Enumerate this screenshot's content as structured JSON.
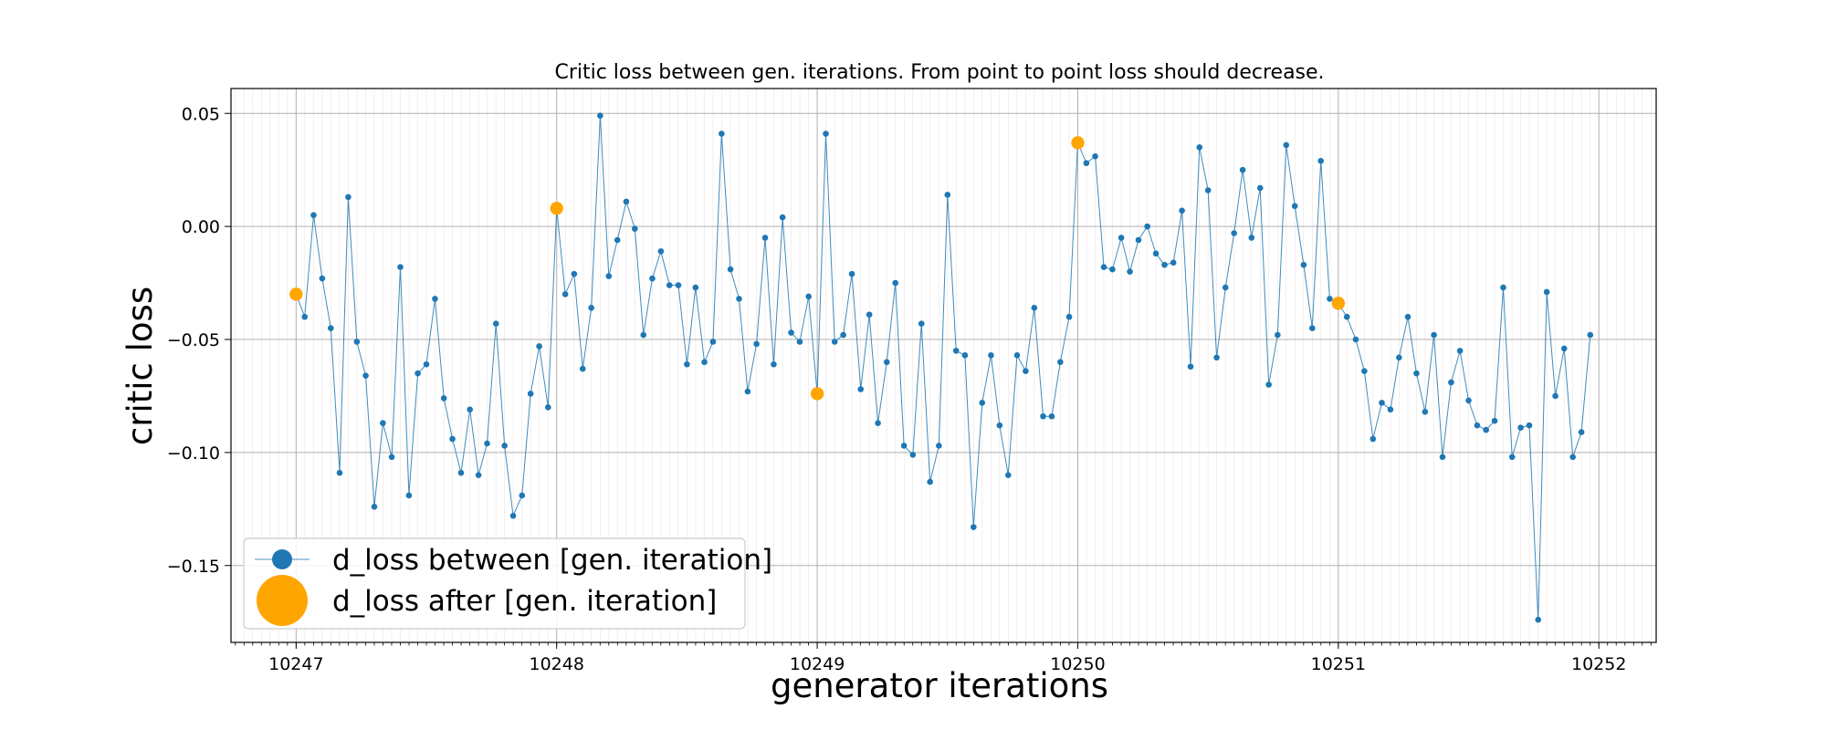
{
  "chart_data": {
    "type": "line",
    "title": "Critic loss between gen. iterations. From point to point loss should decrease.",
    "xlabel": "generator iterations",
    "ylabel": "critic loss",
    "xlim": [
      10246.75,
      10252.22
    ],
    "ylim": [
      -0.184,
      0.061
    ],
    "grid": true,
    "legend_position": "lower-left",
    "x_ticks": [
      10247,
      10248,
      10249,
      10250,
      10251,
      10252
    ],
    "x_tick_labels": [
      "10247",
      "10248",
      "10249",
      "10250",
      "10251",
      "10252"
    ],
    "y_ticks": [
      0.05,
      0.0,
      -0.05,
      -0.1,
      -0.15
    ],
    "y_tick_labels": [
      "0.05",
      "0.00",
      "−0.05",
      "−0.10",
      "−0.15"
    ],
    "series": [
      {
        "name": "d_loss between [gen. iteration]",
        "color": "#1f77b4",
        "marker": "dot",
        "points": [
          [
            10247.0,
            -0.03
          ],
          [
            10247.033,
            -0.04
          ],
          [
            10247.067,
            0.005
          ],
          [
            10247.1,
            -0.023
          ],
          [
            10247.133,
            -0.045
          ],
          [
            10247.167,
            -0.109
          ],
          [
            10247.2,
            0.013
          ],
          [
            10247.233,
            -0.051
          ],
          [
            10247.267,
            -0.066
          ],
          [
            10247.3,
            -0.124
          ],
          [
            10247.333,
            -0.087
          ],
          [
            10247.367,
            -0.102
          ],
          [
            10247.4,
            -0.018
          ],
          [
            10247.433,
            -0.119
          ],
          [
            10247.467,
            -0.065
          ],
          [
            10247.5,
            -0.061
          ],
          [
            10247.533,
            -0.032
          ],
          [
            10247.567,
            -0.076
          ],
          [
            10247.6,
            -0.094
          ],
          [
            10247.633,
            -0.109
          ],
          [
            10247.667,
            -0.081
          ],
          [
            10247.7,
            -0.11
          ],
          [
            10247.733,
            -0.096
          ],
          [
            10247.767,
            -0.043
          ],
          [
            10247.8,
            -0.097
          ],
          [
            10247.833,
            -0.128
          ],
          [
            10247.867,
            -0.119
          ],
          [
            10247.9,
            -0.074
          ],
          [
            10247.933,
            -0.053
          ],
          [
            10247.967,
            -0.08
          ],
          [
            10248.0,
            0.008
          ],
          [
            10248.033,
            -0.03
          ],
          [
            10248.067,
            -0.021
          ],
          [
            10248.1,
            -0.063
          ],
          [
            10248.133,
            -0.036
          ],
          [
            10248.167,
            0.049
          ],
          [
            10248.2,
            -0.022
          ],
          [
            10248.233,
            -0.006
          ],
          [
            10248.267,
            0.011
          ],
          [
            10248.3,
            -0.001
          ],
          [
            10248.333,
            -0.048
          ],
          [
            10248.367,
            -0.023
          ],
          [
            10248.4,
            -0.011
          ],
          [
            10248.433,
            -0.026
          ],
          [
            10248.467,
            -0.026
          ],
          [
            10248.5,
            -0.061
          ],
          [
            10248.533,
            -0.027
          ],
          [
            10248.567,
            -0.06
          ],
          [
            10248.6,
            -0.051
          ],
          [
            10248.633,
            0.041
          ],
          [
            10248.667,
            -0.019
          ],
          [
            10248.7,
            -0.032
          ],
          [
            10248.733,
            -0.073
          ],
          [
            10248.767,
            -0.052
          ],
          [
            10248.8,
            -0.005
          ],
          [
            10248.833,
            -0.061
          ],
          [
            10248.867,
            0.004
          ],
          [
            10248.9,
            -0.047
          ],
          [
            10248.933,
            -0.051
          ],
          [
            10248.967,
            -0.031
          ],
          [
            10249.0,
            -0.074
          ],
          [
            10249.033,
            0.041
          ],
          [
            10249.067,
            -0.051
          ],
          [
            10249.1,
            -0.048
          ],
          [
            10249.133,
            -0.021
          ],
          [
            10249.167,
            -0.072
          ],
          [
            10249.2,
            -0.039
          ],
          [
            10249.233,
            -0.087
          ],
          [
            10249.267,
            -0.06
          ],
          [
            10249.3,
            -0.025
          ],
          [
            10249.333,
            -0.097
          ],
          [
            10249.367,
            -0.101
          ],
          [
            10249.4,
            -0.043
          ],
          [
            10249.433,
            -0.113
          ],
          [
            10249.467,
            -0.097
          ],
          [
            10249.5,
            0.014
          ],
          [
            10249.533,
            -0.055
          ],
          [
            10249.567,
            -0.057
          ],
          [
            10249.6,
            -0.133
          ],
          [
            10249.633,
            -0.078
          ],
          [
            10249.667,
            -0.057
          ],
          [
            10249.7,
            -0.088
          ],
          [
            10249.733,
            -0.11
          ],
          [
            10249.767,
            -0.057
          ],
          [
            10249.8,
            -0.064
          ],
          [
            10249.833,
            -0.036
          ],
          [
            10249.867,
            -0.084
          ],
          [
            10249.9,
            -0.084
          ],
          [
            10249.933,
            -0.06
          ],
          [
            10249.967,
            -0.04
          ],
          [
            10250.0,
            0.037
          ],
          [
            10250.033,
            0.028
          ],
          [
            10250.067,
            0.031
          ],
          [
            10250.1,
            -0.018
          ],
          [
            10250.133,
            -0.019
          ],
          [
            10250.167,
            -0.005
          ],
          [
            10250.2,
            -0.02
          ],
          [
            10250.233,
            -0.006
          ],
          [
            10250.267,
            0.0
          ],
          [
            10250.3,
            -0.012
          ],
          [
            10250.333,
            -0.017
          ],
          [
            10250.367,
            -0.016
          ],
          [
            10250.4,
            0.007
          ],
          [
            10250.433,
            -0.062
          ],
          [
            10250.467,
            0.035
          ],
          [
            10250.5,
            0.016
          ],
          [
            10250.533,
            -0.058
          ],
          [
            10250.567,
            -0.027
          ],
          [
            10250.6,
            -0.003
          ],
          [
            10250.633,
            0.025
          ],
          [
            10250.667,
            -0.005
          ],
          [
            10250.7,
            0.017
          ],
          [
            10250.733,
            -0.07
          ],
          [
            10250.767,
            -0.048
          ],
          [
            10250.8,
            0.036
          ],
          [
            10250.833,
            0.009
          ],
          [
            10250.867,
            -0.017
          ],
          [
            10250.9,
            -0.045
          ],
          [
            10250.933,
            0.029
          ],
          [
            10250.967,
            -0.032
          ],
          [
            10251.0,
            -0.034
          ],
          [
            10251.033,
            -0.04
          ],
          [
            10251.067,
            -0.05
          ],
          [
            10251.1,
            -0.064
          ],
          [
            10251.133,
            -0.094
          ],
          [
            10251.167,
            -0.078
          ],
          [
            10251.2,
            -0.081
          ],
          [
            10251.233,
            -0.058
          ],
          [
            10251.267,
            -0.04
          ],
          [
            10251.3,
            -0.065
          ],
          [
            10251.333,
            -0.082
          ],
          [
            10251.367,
            -0.048
          ],
          [
            10251.4,
            -0.102
          ],
          [
            10251.433,
            -0.069
          ],
          [
            10251.467,
            -0.055
          ],
          [
            10251.5,
            -0.077
          ],
          [
            10251.533,
            -0.088
          ],
          [
            10251.567,
            -0.09
          ],
          [
            10251.6,
            -0.086
          ],
          [
            10251.633,
            -0.027
          ],
          [
            10251.667,
            -0.102
          ],
          [
            10251.7,
            -0.089
          ],
          [
            10251.733,
            -0.088
          ],
          [
            10251.767,
            -0.174
          ],
          [
            10251.8,
            -0.029
          ],
          [
            10251.833,
            -0.075
          ],
          [
            10251.867,
            -0.054
          ],
          [
            10251.9,
            -0.102
          ],
          [
            10251.933,
            -0.091
          ],
          [
            10251.967,
            -0.048
          ]
        ]
      },
      {
        "name": "d_loss after [gen. iteration]",
        "color": "#ffa500",
        "marker": "large-dot",
        "points": [
          [
            10247.0,
            -0.03
          ],
          [
            10248.0,
            0.008
          ],
          [
            10249.0,
            -0.074
          ],
          [
            10250.0,
            0.037
          ],
          [
            10251.0,
            -0.034
          ]
        ]
      }
    ]
  }
}
